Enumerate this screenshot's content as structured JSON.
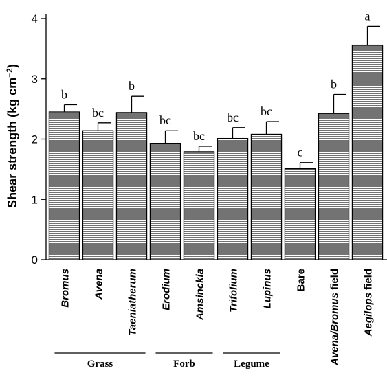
{
  "chart_data": {
    "type": "bar",
    "ylabel": "Shear strength (kg cm",
    "ylabel_sup": "−2",
    "ylabel_close": ")",
    "ylim": [
      0,
      4
    ],
    "yticks": [
      "0",
      "1",
      "2",
      "3",
      "4"
    ],
    "grid": false,
    "pattern": "horizontal-hatch",
    "categories": [
      {
        "label": "Bromus",
        "italic": true
      },
      {
        "label": "Avena",
        "italic": true
      },
      {
        "label": "Taeniatherum",
        "italic": true
      },
      {
        "label": "Erodium",
        "italic": true
      },
      {
        "label": "Amsinckia",
        "italic": true
      },
      {
        "label": "Trifolium",
        "italic": true
      },
      {
        "label": "Lupinus",
        "italic": true
      },
      {
        "label": "Bare",
        "italic": false
      },
      {
        "label": "Avena/Bromus",
        "italic": true,
        "suffix": " field"
      },
      {
        "label": "Aegilops",
        "italic": true,
        "suffix": " field"
      }
    ],
    "values": [
      2.45,
      2.14,
      2.44,
      1.93,
      1.79,
      2.01,
      2.08,
      1.51,
      2.43,
      3.56
    ],
    "errors": [
      0.12,
      0.13,
      0.27,
      0.21,
      0.09,
      0.18,
      0.21,
      0.1,
      0.31,
      0.31
    ],
    "significance": [
      "b",
      "bc",
      "b",
      "bc",
      "bc",
      "bc",
      "bc",
      "c",
      "b",
      "a"
    ],
    "groups": [
      {
        "name": "Grass",
        "from": 0,
        "to": 2
      },
      {
        "name": "Forb",
        "from": 3,
        "to": 4
      },
      {
        "name": "Legume",
        "from": 5,
        "to": 6
      }
    ]
  }
}
